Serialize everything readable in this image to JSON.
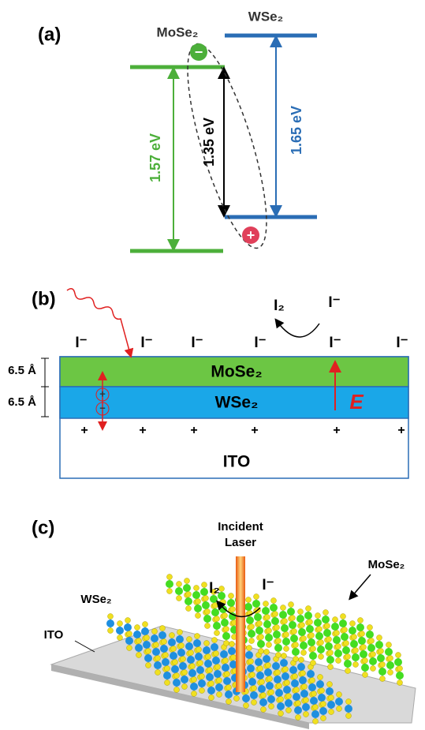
{
  "panel_a": {
    "label": "(a)",
    "mose2": "MoSe₂",
    "wse2": "WSe₂",
    "gap_mose2": "1.57 eV",
    "gap_interlayer": "1.35 eV",
    "gap_wse2": "1.65 eV",
    "electron": "−",
    "hole": "+"
  },
  "panel_b": {
    "label": "(b)",
    "iodide": [
      "I⁻",
      "I⁻",
      "I⁻",
      "I⁻",
      "I⁻",
      "I⁻"
    ],
    "iodine": "I₂",
    "iodide_reaction": "I⁻",
    "mose2": "MoSe₂",
    "wse2": "WSe₂",
    "field": "E",
    "thickness": [
      "6.5 Å",
      "6.5 Å"
    ],
    "charges": [
      "+",
      "+",
      "+",
      "+",
      "+",
      "+"
    ],
    "dipole": [
      "+",
      "−"
    ],
    "substrate": "ITO"
  },
  "panel_c": {
    "label": "(c)",
    "laser": [
      "Incident",
      "Laser"
    ],
    "iodine": "I₂",
    "iodide": "I⁻",
    "wse2": "WSe₂",
    "mose2": "MoSe₂",
    "substrate": "ITO"
  }
}
